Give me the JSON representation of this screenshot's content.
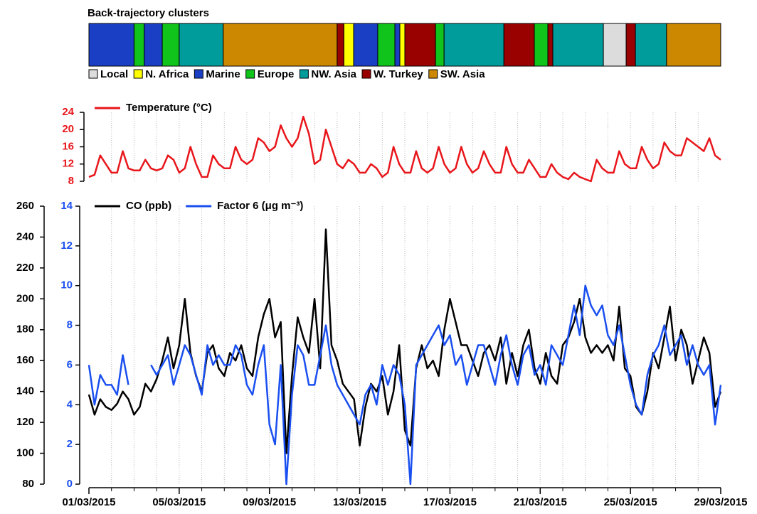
{
  "chart_data": [
    {
      "type": "timeline",
      "title": "Back-trajectory clusters",
      "xlim": [
        0,
        28
      ],
      "segments": [
        {
          "start": 0,
          "end": 2.0,
          "color": "#1a3fc4"
        },
        {
          "start": 2.0,
          "end": 2.45,
          "color": "#11c41b"
        },
        {
          "start": 2.45,
          "end": 3.25,
          "color": "#1a3fc4"
        },
        {
          "start": 3.25,
          "end": 4.0,
          "color": "#11c41b"
        },
        {
          "start": 4.0,
          "end": 5.95,
          "color": "#009c9c"
        },
        {
          "start": 5.95,
          "end": 11.0,
          "color": "#cc8800"
        },
        {
          "start": 11.0,
          "end": 11.3,
          "color": "#990000"
        },
        {
          "start": 11.3,
          "end": 11.73,
          "color": "#ffff00"
        },
        {
          "start": 11.73,
          "end": 12.8,
          "color": "#1a3fc4"
        },
        {
          "start": 12.8,
          "end": 13.56,
          "color": "#11c41b"
        },
        {
          "start": 13.56,
          "end": 13.78,
          "color": "#1a3fc4"
        },
        {
          "start": 13.78,
          "end": 14.0,
          "color": "#ffff00"
        },
        {
          "start": 14.0,
          "end": 15.36,
          "color": "#990000"
        },
        {
          "start": 15.36,
          "end": 15.74,
          "color": "#11c41b"
        },
        {
          "start": 15.74,
          "end": 18.39,
          "color": "#009c9c"
        },
        {
          "start": 18.39,
          "end": 19.74,
          "color": "#990000"
        },
        {
          "start": 19.74,
          "end": 20.34,
          "color": "#11c41b"
        },
        {
          "start": 20.34,
          "end": 20.56,
          "color": "#990000"
        },
        {
          "start": 20.56,
          "end": 22.8,
          "color": "#009c9c"
        },
        {
          "start": 22.8,
          "end": 23.81,
          "color": "#dcdcdc"
        },
        {
          "start": 23.81,
          "end": 24.22,
          "color": "#990000"
        },
        {
          "start": 24.22,
          "end": 25.6,
          "color": "#009c9c"
        },
        {
          "start": 25.6,
          "end": 28.0,
          "color": "#cc8800"
        }
      ],
      "legend": [
        {
          "name": "Local",
          "color": "#dcdcdc"
        },
        {
          "name": "N. Africa",
          "color": "#ffff00"
        },
        {
          "name": "Marine",
          "color": "#1a3fc4"
        },
        {
          "name": "Europe",
          "color": "#11c41b"
        },
        {
          "name": "NW. Asia",
          "color": "#009c9c"
        },
        {
          "name": "W. Turkey",
          "color": "#990000"
        },
        {
          "name": "SW. Asia",
          "color": "#cc8800"
        }
      ]
    },
    {
      "type": "line",
      "xlim": [
        0,
        28
      ],
      "ylim": [
        8,
        24
      ],
      "yticks": [
        8,
        12,
        16,
        20,
        24
      ],
      "ytick_color": "#e8161b",
      "xgrid": [
        1,
        2,
        3,
        4,
        5,
        6,
        7,
        8,
        9,
        10,
        11,
        12,
        13,
        14,
        15,
        16,
        17,
        18,
        19,
        20,
        21,
        22,
        23,
        24,
        25,
        26,
        27
      ],
      "x": [
        0,
        0.25,
        0.5,
        0.75,
        1,
        1.25,
        1.5,
        1.75,
        2,
        2.25,
        2.5,
        2.75,
        3,
        3.25,
        3.5,
        3.75,
        4,
        4.25,
        4.5,
        4.75,
        5,
        5.25,
        5.5,
        5.75,
        6,
        6.25,
        6.5,
        6.75,
        7,
        7.25,
        7.5,
        7.75,
        8,
        8.25,
        8.5,
        8.75,
        9,
        9.25,
        9.5,
        9.75,
        10,
        10.25,
        10.5,
        10.75,
        11,
        11.25,
        11.5,
        11.75,
        12,
        12.25,
        12.5,
        12.75,
        13,
        13.25,
        13.5,
        13.75,
        14,
        14.25,
        14.5,
        14.75,
        15,
        15.25,
        15.5,
        15.75,
        16,
        16.25,
        16.5,
        16.75,
        17,
        17.25,
        17.5,
        17.75,
        18,
        18.25,
        18.5,
        18.75,
        19,
        19.25,
        19.5,
        19.75,
        20,
        20.25,
        20.5,
        20.75,
        21,
        21.25,
        21.5,
        21.75,
        22,
        22.25,
        22.5,
        22.75,
        23,
        23.25,
        23.5,
        23.75,
        24,
        24.25,
        24.5,
        24.75,
        25,
        25.25,
        25.5,
        25.75,
        26,
        26.25,
        26.5,
        26.75,
        27,
        27.25,
        27.5,
        27.75,
        28
      ],
      "series": [
        {
          "name": "Temperature (°C)",
          "color": "#e8161b",
          "values": [
            9,
            9.5,
            14,
            12,
            10,
            10,
            15,
            11,
            10.5,
            10.5,
            13,
            11,
            10.5,
            11,
            14,
            13,
            10,
            11,
            16,
            12,
            9,
            9,
            14,
            12,
            11,
            11,
            16,
            13,
            12,
            13,
            18,
            17,
            15,
            16,
            21,
            18,
            16,
            18,
            23,
            19,
            12,
            13,
            20,
            16,
            12,
            11,
            13,
            12,
            10,
            10,
            12,
            11,
            9,
            10,
            16,
            12,
            10,
            10,
            15,
            11,
            10,
            11,
            16,
            12,
            10,
            11,
            16,
            12,
            10,
            11,
            15,
            12,
            10,
            10,
            16,
            12,
            10,
            10,
            13,
            11,
            9,
            9,
            12,
            10,
            9,
            8.5,
            10,
            9,
            8.5,
            8,
            13,
            11,
            10,
            10,
            15,
            12,
            11,
            11,
            16,
            13,
            11,
            12,
            17,
            15,
            14,
            14,
            18,
            17,
            16,
            15,
            18,
            14,
            13
          ]
        }
      ]
    },
    {
      "type": "line",
      "xlim": [
        0,
        28
      ],
      "ylim": [
        80,
        260
      ],
      "yticks": [
        80,
        100,
        120,
        140,
        160,
        180,
        200,
        220,
        240,
        260
      ],
      "y2lim": [
        0,
        14
      ],
      "y2ticks": [
        0,
        2,
        4,
        6,
        8,
        10,
        12,
        14
      ],
      "y2tick_color": "#1a4ff0",
      "xticks": [
        {
          "value": 0,
          "label": "01/03/2015"
        },
        {
          "value": 4,
          "label": "05/03/2015"
        },
        {
          "value": 8,
          "label": "09/03/2015"
        },
        {
          "value": 12,
          "label": "13/03/2015"
        },
        {
          "value": 16,
          "label": "17/03/2015"
        },
        {
          "value": 20,
          "label": "21/03/2015"
        },
        {
          "value": 24,
          "label": "25/03/2015"
        },
        {
          "value": 28,
          "label": "29/03/2015"
        }
      ],
      "xgrid": [
        1,
        2,
        3,
        4,
        5,
        6,
        7,
        8,
        9,
        10,
        11,
        12,
        13,
        14,
        15,
        16,
        17,
        18,
        19,
        20,
        21,
        22,
        23,
        24,
        25,
        26,
        27
      ],
      "x": [
        0,
        0.25,
        0.5,
        0.75,
        1,
        1.25,
        1.5,
        1.75,
        2,
        2.25,
        2.5,
        2.75,
        3,
        3.25,
        3.5,
        3.75,
        4,
        4.25,
        4.5,
        4.75,
        5,
        5.25,
        5.5,
        5.75,
        6,
        6.25,
        6.5,
        6.75,
        7,
        7.25,
        7.5,
        7.75,
        8,
        8.25,
        8.5,
        8.75,
        9,
        9.25,
        9.5,
        9.75,
        10,
        10.25,
        10.5,
        10.75,
        11,
        11.25,
        11.5,
        11.75,
        12,
        12.25,
        12.5,
        12.75,
        13,
        13.25,
        13.5,
        13.75,
        14,
        14.25,
        14.5,
        14.75,
        15,
        15.25,
        15.5,
        15.75,
        16,
        16.25,
        16.5,
        16.75,
        17,
        17.25,
        17.5,
        17.75,
        18,
        18.25,
        18.5,
        18.75,
        19,
        19.25,
        19.5,
        19.75,
        20,
        20.25,
        20.5,
        20.75,
        21,
        21.25,
        21.5,
        21.75,
        22,
        22.25,
        22.5,
        22.75,
        23,
        23.25,
        23.5,
        23.75,
        24,
        24.25,
        24.5,
        24.75,
        25,
        25.25,
        25.5,
        25.75,
        26,
        26.25,
        26.5,
        26.75,
        27,
        27.25,
        27.5,
        27.75,
        28
      ],
      "series": [
        {
          "name": "CO (ppb)",
          "color": "#000000",
          "values": [
            138,
            125,
            135,
            130,
            128,
            132,
            140,
            135,
            125,
            130,
            145,
            140,
            148,
            160,
            175,
            155,
            170,
            200,
            165,
            150,
            140,
            165,
            170,
            155,
            150,
            165,
            160,
            170,
            155,
            150,
            175,
            190,
            200,
            175,
            185,
            100,
            150,
            188,
            175,
            165,
            200,
            155,
            245,
            170,
            160,
            145,
            140,
            135,
            105,
            130,
            145,
            140,
            150,
            125,
            140,
            170,
            115,
            105,
            155,
            170,
            155,
            160,
            150,
            180,
            200,
            185,
            170,
            170,
            160,
            150,
            165,
            170,
            160,
            175,
            145,
            165,
            150,
            170,
            180,
            155,
            145,
            165,
            150,
            145,
            170,
            175,
            185,
            200,
            175,
            165,
            170,
            165,
            170,
            160,
            195,
            155,
            150,
            130,
            125,
            140,
            165,
            155,
            175,
            195,
            160,
            180,
            170,
            145,
            160,
            175,
            165,
            130,
            140
          ]
        },
        {
          "name": "Factor 6 (μg m⁻³)",
          "color": "#1a4ff0",
          "axis": "y2",
          "values": [
            6,
            4,
            5.5,
            5,
            5,
            4.5,
            6.5,
            5,
            null,
            null,
            null,
            6,
            5.5,
            6,
            6.5,
            5,
            6,
            7,
            6.5,
            5.5,
            4.5,
            7,
            6,
            6.5,
            6,
            6,
            7,
            6.5,
            5,
            4.5,
            6,
            7,
            3,
            2,
            6,
            0,
            4.5,
            7,
            6.5,
            5,
            5,
            6.5,
            8,
            6,
            5,
            4.5,
            4,
            3.5,
            3,
            4.5,
            5,
            4,
            6,
            5,
            6,
            5.5,
            4,
            0,
            6,
            6.5,
            7,
            7.5,
            8,
            7,
            7.5,
            6,
            6.5,
            5,
            6,
            7,
            7,
            6,
            5,
            6.5,
            7.5,
            6,
            5,
            6.5,
            7,
            5.5,
            6,
            5,
            7,
            6.5,
            6,
            7.5,
            9,
            7.5,
            10,
            9,
            8.5,
            9,
            7.5,
            7,
            8,
            6.5,
            5,
            4,
            3.5,
            5.5,
            6.5,
            7,
            8,
            6.5,
            7,
            7.5,
            6,
            7,
            6,
            5.5,
            6,
            3,
            5
          ]
        }
      ]
    }
  ]
}
